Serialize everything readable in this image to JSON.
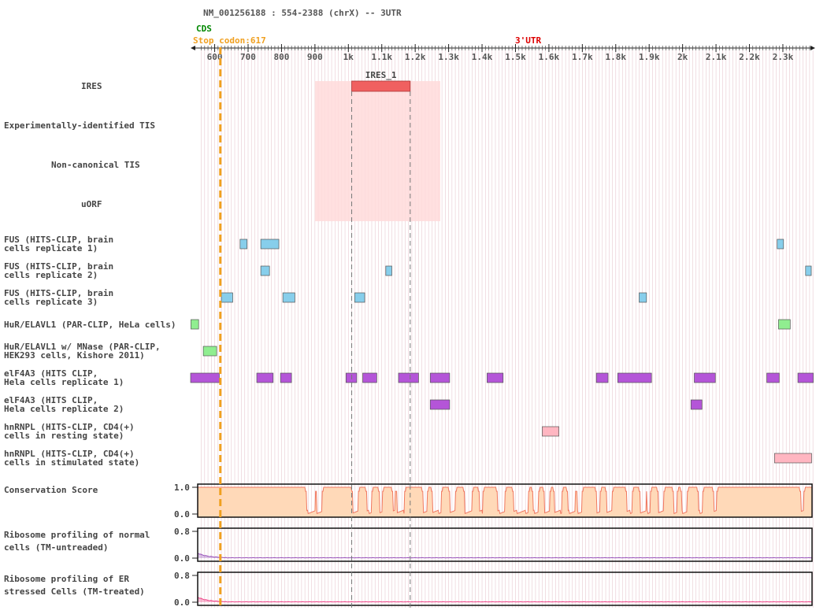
{
  "header": {
    "transcript_title": "NM_001256188 : 554-2388 (chrX) -- 3UTR",
    "cds_label": "CDS",
    "stop_codon_label": "Stop codon:617",
    "utr_label": "3'UTR"
  },
  "ruler": {
    "start": 554,
    "end": 2388,
    "stop_codon": 617,
    "ticks": [
      {
        "pos": 600,
        "label": "600"
      },
      {
        "pos": 700,
        "label": "700"
      },
      {
        "pos": 800,
        "label": "800"
      },
      {
        "pos": 900,
        "label": "900"
      },
      {
        "pos": 1000,
        "label": "1k"
      },
      {
        "pos": 1100,
        "label": "1.1k"
      },
      {
        "pos": 1200,
        "label": "1.2k"
      },
      {
        "pos": 1300,
        "label": "1.3k"
      },
      {
        "pos": 1400,
        "label": "1.4k"
      },
      {
        "pos": 1500,
        "label": "1.5k"
      },
      {
        "pos": 1600,
        "label": "1.6k"
      },
      {
        "pos": 1700,
        "label": "1.7k"
      },
      {
        "pos": 1800,
        "label": "1.8k"
      },
      {
        "pos": 1900,
        "label": "1.9k"
      },
      {
        "pos": 2000,
        "label": "2k"
      },
      {
        "pos": 2100,
        "label": "2.1k"
      },
      {
        "pos": 2200,
        "label": "2.2k"
      },
      {
        "pos": 2300,
        "label": "2.3k"
      }
    ]
  },
  "colors": {
    "stop_line": "#f0a020",
    "cds": "#008800",
    "utr": "#dd0000",
    "ires": "#f06060",
    "ires_shade": "#ffdada",
    "fus": "#87ceeb",
    "hur": "#90ee90",
    "eif4a3": "#b455d8",
    "hnrnpl": "#ffb6c1",
    "grid": "#e8c8d0",
    "conservation_fill": "#ffd9b8",
    "conservation_line": "#f07860",
    "ribo_normal": "#9955bb",
    "ribo_stressed": "#ee4488"
  },
  "tracks": [
    {
      "id": "ires",
      "label_lines": [
        "IRES"
      ],
      "features": [
        {
          "start": 1010,
          "end": 1185,
          "name": "IRES_1"
        }
      ]
    },
    {
      "id": "tis",
      "label_lines": [
        "Experimentally-identified TIS"
      ],
      "features": []
    },
    {
      "id": "noncanonical-tis",
      "label_lines": [
        "Non-canonical TIS"
      ],
      "features": []
    },
    {
      "id": "uorf",
      "label_lines": [
        "uORF"
      ],
      "features": []
    },
    {
      "id": "fus-1",
      "label_lines": [
        "FUS (HITS-CLIP, brain",
        "cells replicate 1)"
      ],
      "color": "fus",
      "features": [
        {
          "start": 676,
          "end": 697
        },
        {
          "start": 738,
          "end": 792
        },
        {
          "start": 2283,
          "end": 2302
        }
      ]
    },
    {
      "id": "fus-2",
      "label_lines": [
        "FUS (HITS-CLIP, brain",
        "cells replicate 2)"
      ],
      "color": "fus",
      "features": [
        {
          "start": 738,
          "end": 764
        },
        {
          "start": 1112,
          "end": 1130
        },
        {
          "start": 2368,
          "end": 2385
        }
      ]
    },
    {
      "id": "fus-3",
      "label_lines": [
        "FUS (HITS-CLIP, brain",
        "cells replicate 3)"
      ],
      "color": "fus",
      "features": [
        {
          "start": 620,
          "end": 654
        },
        {
          "start": 804,
          "end": 840
        },
        {
          "start": 1019,
          "end": 1049
        },
        {
          "start": 1870,
          "end": 1892
        }
      ]
    },
    {
      "id": "hur",
      "label_lines": [
        "HuR/ELAVL1 (PAR-CLIP, HeLa cells)"
      ],
      "color": "hur",
      "features": [
        {
          "start": 529,
          "end": 552
        },
        {
          "start": 2287,
          "end": 2322
        }
      ]
    },
    {
      "id": "hur-mnase",
      "label_lines": [
        "HuR/ELAVL1 w/ MNase (PAR-CLIP,",
        "HEK293 cells, Kishore 2011)"
      ],
      "color": "hur",
      "features": [
        {
          "start": 566,
          "end": 606
        }
      ]
    },
    {
      "id": "eif4a3-1",
      "label_lines": [
        "elF4A3 (HITS CLIP,",
        "Hela cells replicate 1)"
      ],
      "color": "eif4a3",
      "features": [
        {
          "start": 528,
          "end": 614
        },
        {
          "start": 726,
          "end": 775
        },
        {
          "start": 797,
          "end": 830
        },
        {
          "start": 993,
          "end": 1025
        },
        {
          "start": 1043,
          "end": 1085
        },
        {
          "start": 1150,
          "end": 1210
        },
        {
          "start": 1245,
          "end": 1303
        },
        {
          "start": 1415,
          "end": 1463
        },
        {
          "start": 1742,
          "end": 1777
        },
        {
          "start": 1806,
          "end": 1907
        },
        {
          "start": 2035,
          "end": 2098
        },
        {
          "start": 2252,
          "end": 2289
        },
        {
          "start": 2345,
          "end": 2391
        }
      ]
    },
    {
      "id": "eif4a3-2",
      "label_lines": [
        "elF4A3 (HITS CLIP,",
        "Hela cells replicate 2)"
      ],
      "color": "eif4a3",
      "features": [
        {
          "start": 1245,
          "end": 1303
        },
        {
          "start": 2025,
          "end": 2058
        }
      ]
    },
    {
      "id": "hnrnpl-rest",
      "label_lines": [
        "hnRNPL (HITS-CLIP, CD4(+)",
        "cells in resting state)"
      ],
      "color": "hnrnpl",
      "features": [
        {
          "start": 1580,
          "end": 1630
        }
      ]
    },
    {
      "id": "hnrnpl-stim",
      "label_lines": [
        "hnRNPL (HITS-CLIP, CD4(+)",
        "cells in stimulated state)"
      ],
      "color": "hnrnpl",
      "features": [
        {
          "start": 2275,
          "end": 2386
        }
      ]
    }
  ],
  "conservation": {
    "label": "Conservation Score",
    "y_ticks": [
      "1.0",
      "0.0"
    ],
    "drops": [
      [
        880,
        905
      ],
      [
        910,
        925
      ],
      [
        1018,
        1032
      ],
      [
        1060,
        1072
      ],
      [
        1098,
        1105
      ],
      [
        1138,
        1142
      ],
      [
        1150,
        1170
      ],
      [
        1228,
        1238
      ],
      [
        1256,
        1280
      ],
      [
        1308,
        1322
      ],
      [
        1352,
        1372
      ],
      [
        1395,
        1405
      ],
      [
        1450,
        1470
      ],
      [
        1498,
        1540
      ],
      [
        1555,
        1570
      ],
      [
        1590,
        1605
      ],
      [
        1620,
        1640
      ],
      [
        1660,
        1680
      ],
      [
        1688,
        1700
      ],
      [
        1745,
        1755
      ],
      [
        1775,
        1790
      ],
      [
        1835,
        1850
      ],
      [
        1875,
        1892
      ],
      [
        1895,
        1905
      ],
      [
        1930,
        1945
      ],
      [
        1975,
        1985
      ],
      [
        2000,
        2015
      ],
      [
        2050,
        2060
      ],
      [
        2095,
        2102
      ],
      [
        2355,
        2362
      ]
    ]
  },
  "ribo_normal": {
    "label_lines": [
      "Ribosome profiling of normal",
      "cells (TM-untreaded)"
    ],
    "y_ticks": [
      "0.8",
      "0.0"
    ]
  },
  "ribo_stressed": {
    "label_lines": [
      "Ribosome profiling of ER",
      "stressed Cells (TM-treated)"
    ],
    "y_ticks": [
      "0.8",
      "0.0"
    ]
  }
}
